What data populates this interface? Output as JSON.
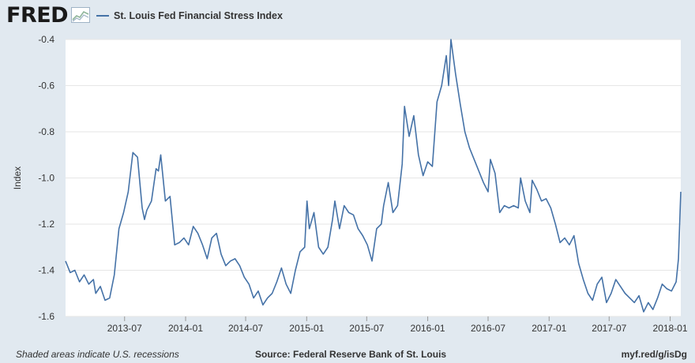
{
  "header": {
    "logo": "FRED"
  },
  "footer": {
    "note": "Shaded areas indicate U.S. recessions",
    "source": "Source: Federal Reserve Bank of St. Louis",
    "url": "myf.red/g/isDg"
  },
  "colors": {
    "line": "#4572a7",
    "plot_bg": "#ffffff",
    "page_bg": "#e1e9f0",
    "grid": "#e6e6e6"
  },
  "chart_data": {
    "type": "line",
    "title": "",
    "xlabel": "",
    "ylabel": "Index",
    "ylim": [
      -1.6,
      -0.4
    ],
    "xlim": [
      "2013-01-04",
      "2018-02-02"
    ],
    "y_ticks": [
      "-0.4",
      "-0.6",
      "-0.8",
      "-1.0",
      "-1.2",
      "-1.4",
      "-1.6"
    ],
    "x_ticks": [
      {
        "date": "2013-07-01",
        "label": "2013-07"
      },
      {
        "date": "2014-01-01",
        "label": "2014-01"
      },
      {
        "date": "2014-07-01",
        "label": "2014-07"
      },
      {
        "date": "2015-01-01",
        "label": "2015-01"
      },
      {
        "date": "2015-07-01",
        "label": "2015-07"
      },
      {
        "date": "2016-01-01",
        "label": "2016-01"
      },
      {
        "date": "2016-07-01",
        "label": "2016-07"
      },
      {
        "date": "2017-01-01",
        "label": "2017-01"
      },
      {
        "date": "2017-07-01",
        "label": "2017-07"
      },
      {
        "date": "2018-01-01",
        "label": "2018-01"
      }
    ],
    "grid": true,
    "legend": "top-left",
    "series": [
      {
        "name": "St. Louis Fed Financial Stress Index",
        "points": [
          [
            "2013-01-04",
            -1.36
          ],
          [
            "2013-01-18",
            -1.41
          ],
          [
            "2013-02-01",
            -1.4
          ],
          [
            "2013-02-15",
            -1.45
          ],
          [
            "2013-03-01",
            -1.42
          ],
          [
            "2013-03-15",
            -1.46
          ],
          [
            "2013-03-29",
            -1.44
          ],
          [
            "2013-04-05",
            -1.5
          ],
          [
            "2013-04-19",
            -1.47
          ],
          [
            "2013-05-03",
            -1.53
          ],
          [
            "2013-05-17",
            -1.52
          ],
          [
            "2013-05-31",
            -1.42
          ],
          [
            "2013-06-14",
            -1.22
          ],
          [
            "2013-06-28",
            -1.15
          ],
          [
            "2013-07-12",
            -1.06
          ],
          [
            "2013-07-26",
            -0.89
          ],
          [
            "2013-08-09",
            -0.91
          ],
          [
            "2013-08-23",
            -1.13
          ],
          [
            "2013-08-30",
            -1.18
          ],
          [
            "2013-09-06",
            -1.14
          ],
          [
            "2013-09-20",
            -1.1
          ],
          [
            "2013-10-04",
            -0.96
          ],
          [
            "2013-10-11",
            -0.97
          ],
          [
            "2013-10-18",
            -0.9
          ],
          [
            "2013-11-01",
            -1.1
          ],
          [
            "2013-11-15",
            -1.08
          ],
          [
            "2013-11-29",
            -1.29
          ],
          [
            "2013-12-13",
            -1.28
          ],
          [
            "2013-12-27",
            -1.26
          ],
          [
            "2014-01-10",
            -1.29
          ],
          [
            "2014-01-24",
            -1.21
          ],
          [
            "2014-02-07",
            -1.24
          ],
          [
            "2014-02-21",
            -1.29
          ],
          [
            "2014-03-07",
            -1.35
          ],
          [
            "2014-03-21",
            -1.26
          ],
          [
            "2014-04-04",
            -1.24
          ],
          [
            "2014-04-18",
            -1.33
          ],
          [
            "2014-05-02",
            -1.38
          ],
          [
            "2014-05-16",
            -1.36
          ],
          [
            "2014-05-30",
            -1.35
          ],
          [
            "2014-06-13",
            -1.38
          ],
          [
            "2014-06-27",
            -1.43
          ],
          [
            "2014-07-11",
            -1.46
          ],
          [
            "2014-07-25",
            -1.52
          ],
          [
            "2014-08-08",
            -1.49
          ],
          [
            "2014-08-22",
            -1.55
          ],
          [
            "2014-09-05",
            -1.52
          ],
          [
            "2014-09-19",
            -1.5
          ],
          [
            "2014-10-03",
            -1.45
          ],
          [
            "2014-10-17",
            -1.39
          ],
          [
            "2014-10-31",
            -1.46
          ],
          [
            "2014-11-14",
            -1.5
          ],
          [
            "2014-11-28",
            -1.4
          ],
          [
            "2014-12-12",
            -1.32
          ],
          [
            "2014-12-26",
            -1.3
          ],
          [
            "2015-01-02",
            -1.1
          ],
          [
            "2015-01-09",
            -1.22
          ],
          [
            "2015-01-23",
            -1.15
          ],
          [
            "2015-02-06",
            -1.3
          ],
          [
            "2015-02-20",
            -1.33
          ],
          [
            "2015-03-06",
            -1.3
          ],
          [
            "2015-03-20",
            -1.18
          ],
          [
            "2015-03-27",
            -1.1
          ],
          [
            "2015-04-10",
            -1.22
          ],
          [
            "2015-04-24",
            -1.12
          ],
          [
            "2015-05-08",
            -1.15
          ],
          [
            "2015-05-22",
            -1.16
          ],
          [
            "2015-06-05",
            -1.22
          ],
          [
            "2015-06-19",
            -1.25
          ],
          [
            "2015-07-03",
            -1.29
          ],
          [
            "2015-07-17",
            -1.36
          ],
          [
            "2015-07-31",
            -1.22
          ],
          [
            "2015-08-14",
            -1.2
          ],
          [
            "2015-08-21",
            -1.12
          ],
          [
            "2015-09-04",
            -1.02
          ],
          [
            "2015-09-18",
            -1.15
          ],
          [
            "2015-10-02",
            -1.12
          ],
          [
            "2015-10-16",
            -0.94
          ],
          [
            "2015-10-23",
            -0.69
          ],
          [
            "2015-11-06",
            -0.82
          ],
          [
            "2015-11-20",
            -0.73
          ],
          [
            "2015-12-04",
            -0.9
          ],
          [
            "2015-12-18",
            -0.99
          ],
          [
            "2016-01-01",
            -0.93
          ],
          [
            "2016-01-15",
            -0.95
          ],
          [
            "2016-01-29",
            -0.67
          ],
          [
            "2016-02-12",
            -0.6
          ],
          [
            "2016-02-26",
            -0.47
          ],
          [
            "2016-03-04",
            -0.6
          ],
          [
            "2016-03-11",
            -0.4
          ],
          [
            "2016-03-25",
            -0.55
          ],
          [
            "2016-04-08",
            -0.68
          ],
          [
            "2016-04-22",
            -0.8
          ],
          [
            "2016-05-06",
            -0.87
          ],
          [
            "2016-05-20",
            -0.92
          ],
          [
            "2016-06-03",
            -0.97
          ],
          [
            "2016-06-17",
            -1.02
          ],
          [
            "2016-07-01",
            -1.06
          ],
          [
            "2016-07-08",
            -0.92
          ],
          [
            "2016-07-22",
            -0.98
          ],
          [
            "2016-08-05",
            -1.15
          ],
          [
            "2016-08-19",
            -1.12
          ],
          [
            "2016-09-02",
            -1.13
          ],
          [
            "2016-09-16",
            -1.12
          ],
          [
            "2016-09-30",
            -1.13
          ],
          [
            "2016-10-07",
            -1.0
          ],
          [
            "2016-10-21",
            -1.1
          ],
          [
            "2016-11-04",
            -1.15
          ],
          [
            "2016-11-11",
            -1.01
          ],
          [
            "2016-11-25",
            -1.05
          ],
          [
            "2016-12-09",
            -1.1
          ],
          [
            "2016-12-23",
            -1.09
          ],
          [
            "2017-01-06",
            -1.13
          ],
          [
            "2017-01-20",
            -1.2
          ],
          [
            "2017-02-03",
            -1.28
          ],
          [
            "2017-02-17",
            -1.26
          ],
          [
            "2017-03-03",
            -1.29
          ],
          [
            "2017-03-17",
            -1.25
          ],
          [
            "2017-03-31",
            -1.37
          ],
          [
            "2017-04-14",
            -1.44
          ],
          [
            "2017-04-28",
            -1.5
          ],
          [
            "2017-05-12",
            -1.53
          ],
          [
            "2017-05-26",
            -1.46
          ],
          [
            "2017-06-09",
            -1.43
          ],
          [
            "2017-06-23",
            -1.54
          ],
          [
            "2017-07-07",
            -1.5
          ],
          [
            "2017-07-21",
            -1.44
          ],
          [
            "2017-08-04",
            -1.47
          ],
          [
            "2017-08-18",
            -1.5
          ],
          [
            "2017-09-01",
            -1.52
          ],
          [
            "2017-09-15",
            -1.54
          ],
          [
            "2017-09-29",
            -1.51
          ],
          [
            "2017-10-13",
            -1.58
          ],
          [
            "2017-10-27",
            -1.54
          ],
          [
            "2017-11-10",
            -1.57
          ],
          [
            "2017-11-24",
            -1.52
          ],
          [
            "2017-12-08",
            -1.46
          ],
          [
            "2017-12-22",
            -1.48
          ],
          [
            "2018-01-05",
            -1.49
          ],
          [
            "2018-01-19",
            -1.45
          ],
          [
            "2018-01-26",
            -1.35
          ],
          [
            "2018-02-02",
            -1.06
          ]
        ]
      }
    ]
  }
}
